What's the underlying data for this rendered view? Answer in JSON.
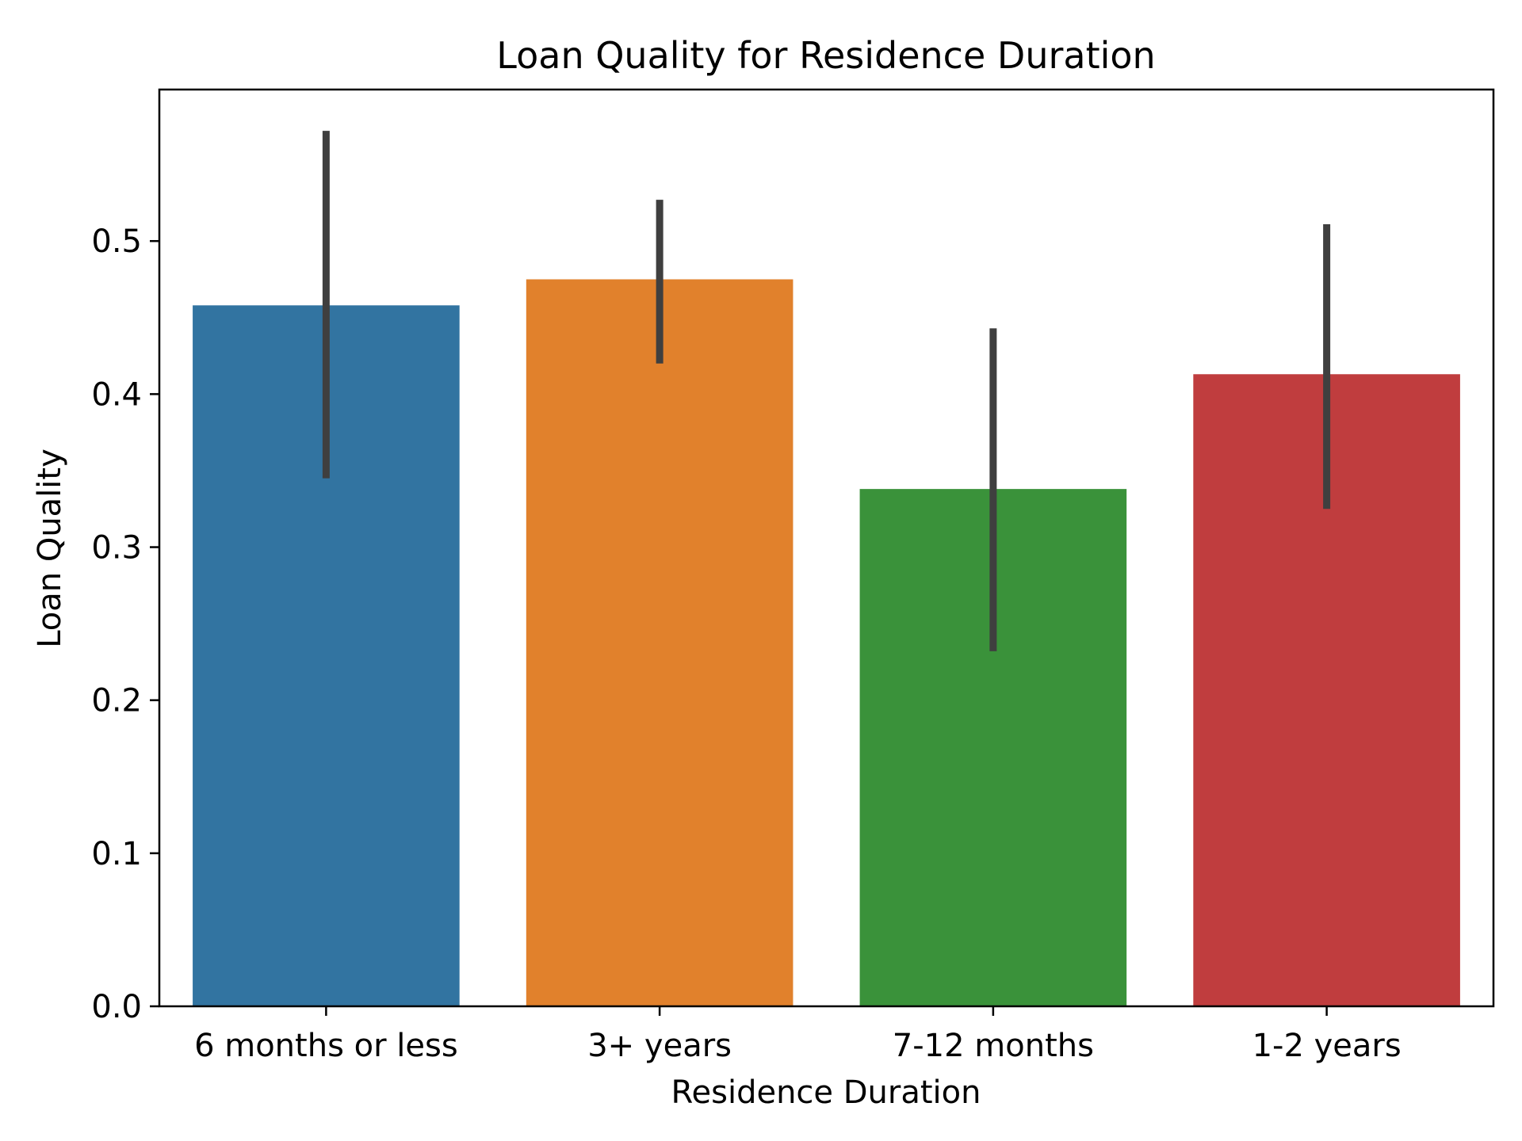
{
  "chart_data": {
    "type": "bar",
    "title": "Loan Quality for Residence Duration",
    "xlabel": "Residence Duration",
    "ylabel": "Loan Quality",
    "categories": [
      "6 months or less",
      "3+ years",
      "7-12 months",
      "1-2 years"
    ],
    "values": [
      0.458,
      0.475,
      0.338,
      0.413
    ],
    "error_low": [
      0.345,
      0.42,
      0.232,
      0.325
    ],
    "error_high": [
      0.572,
      0.527,
      0.443,
      0.511
    ],
    "colors": [
      "#3274a1",
      "#e1812c",
      "#3a923a",
      "#c03d3e"
    ],
    "errorbar_color": "#3f3f3f",
    "ylim": [
      0,
      0.599
    ],
    "yticks": [
      0.0,
      0.1,
      0.2,
      0.3,
      0.4,
      0.5
    ],
    "ytick_labels": [
      "0.0",
      "0.1",
      "0.2",
      "0.3",
      "0.4",
      "0.5"
    ],
    "grid": false,
    "legend": false
  }
}
